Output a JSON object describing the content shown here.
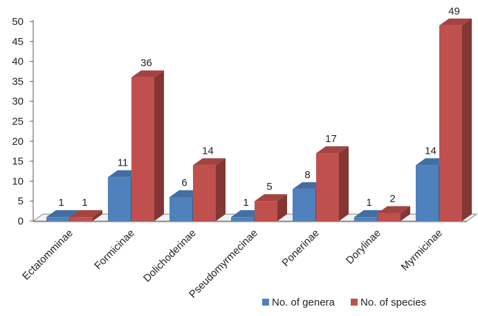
{
  "chart_data": {
    "type": "bar",
    "categories": [
      "Ectatomminae",
      "Formicinae",
      "Dolichoderinae",
      "Pseudomyrmecinae",
      "Ponerinae",
      "Dorylinae",
      "Myrmicinae"
    ],
    "series": [
      {
        "name": "No. of genera",
        "values": [
          1,
          11,
          6,
          1,
          8,
          1,
          14
        ],
        "color": "#4F81BD"
      },
      {
        "name": "No. of species",
        "values": [
          1,
          36,
          14,
          5,
          17,
          2,
          49
        ],
        "color": "#C0504D"
      }
    ],
    "ylim": [
      0,
      50
    ],
    "yticks": [
      0,
      5,
      10,
      15,
      20,
      25,
      30,
      35,
      40,
      45,
      50
    ],
    "data_labels": true,
    "grid": false,
    "legend_position": "bottom-right",
    "style": "3d-clustered-column"
  }
}
